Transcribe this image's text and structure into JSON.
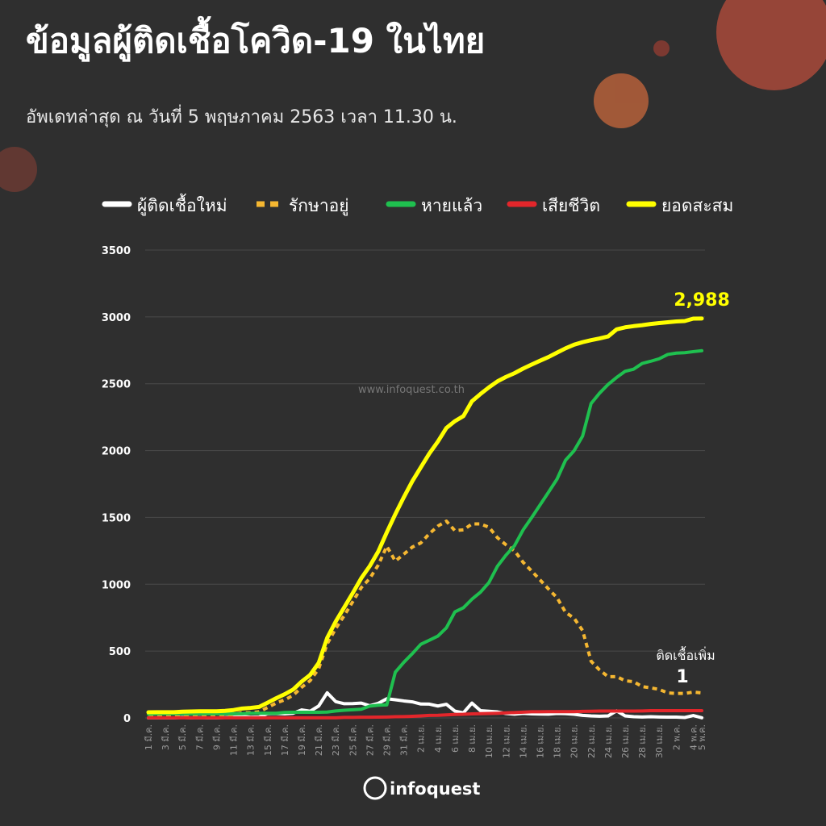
{
  "chart_data": {
    "type": "line",
    "title": "ข้อมูลผู้ติดเชื้อโควิด-19 ในไทย",
    "subtitle": "อัพเดทล่าสุด ณ วันที่  5 พฤษภาคม 2563 เวลา 11.30 น.",
    "watermark": "www.infoquest.co.th",
    "logo": "infoquest",
    "annotation": "ติดเชื้อเพิ่ม",
    "categories": [
      "1 มี.ค.",
      null,
      "3 มี.ค.",
      null,
      "5 มี.ค.",
      null,
      "7 มี.ค.",
      null,
      "9 มี.ค.",
      null,
      "11 มี.ค.",
      null,
      "13 มี.ค.",
      null,
      "15 มี.ค.",
      null,
      "17 มี.ค.",
      null,
      "19 มี.ค.",
      null,
      "21 มี.ค.",
      null,
      "23 มี.ค.",
      null,
      "25 มี.ค.",
      null,
      "27 มี.ค.",
      null,
      "29 มี.ค.",
      null,
      "31 มี.ค.",
      null,
      "2 เม.ย.",
      null,
      "4 เม.ย.",
      null,
      "6 เม.ย.",
      null,
      "8 เม.ย.",
      null,
      "10 เม.ย.",
      null,
      "12 เม.ย.",
      null,
      "14 เม.ย.",
      null,
      "16 เม.ย.",
      null,
      "18 เม.ย.",
      null,
      "20 เม.ย.",
      null,
      "22 เม.ย.",
      null,
      "24 เม.ย.",
      null,
      "26 เม.ย.",
      null,
      "28 เม.ย.",
      null,
      "30 เม.ย.",
      null,
      "2 พ.ค.",
      null,
      "4 พ.ค.",
      "5 พ.ค."
    ],
    "series": [
      {
        "name": "ผู้ติดเชื้อใหม่",
        "color": "#ffffff",
        "dashed": false,
        "values": [
          0,
          1,
          0,
          0,
          4,
          1,
          2,
          0,
          0,
          3,
          6,
          11,
          5,
          7,
          32,
          33,
          30,
          35,
          60,
          50,
          89,
          188,
          122,
          106,
          107,
          111,
          91,
          109,
          143,
          136,
          127,
          120,
          104,
          103,
          89,
          102,
          51,
          38,
          111,
          54,
          50,
          45,
          33,
          28,
          34,
          30,
          29,
          28,
          33,
          32,
          27,
          19,
          15,
          13,
          15,
          53,
          15,
          9,
          7,
          9,
          7,
          6,
          6,
          3,
          18,
          1
        ],
        "value_labels": [
          null,
          null,
          null,
          null,
          null,
          null,
          null,
          null,
          null,
          null,
          null,
          null,
          null,
          null,
          null,
          null,
          null,
          null,
          null,
          null,
          null,
          null,
          null,
          null,
          null,
          null,
          null,
          null,
          null,
          null,
          null,
          null,
          null,
          null,
          null,
          null,
          null,
          null,
          null,
          null,
          null,
          null,
          null,
          null,
          null,
          null,
          null,
          null,
          null,
          null,
          null,
          null,
          null,
          null,
          null,
          null,
          null,
          null,
          null,
          null,
          null,
          null,
          null,
          null,
          null,
          "1"
        ]
      },
      {
        "name": "รักษาอยู่",
        "color": "#f5b731",
        "dashed": true,
        "values": [
          13,
          11,
          11,
          11,
          15,
          16,
          18,
          18,
          18,
          21,
          27,
          38,
          39,
          46,
          78,
          111,
          135,
          169,
          229,
          279,
          368,
          554,
          668,
          766,
          869,
          975,
          1043,
          1144,
          1284,
          1173,
          1225,
          1278,
          1309,
          1378,
          1435,
          1472,
          1401,
          1407,
          1451,
          1451,
          1427,
          1348,
          1295,
          1251,
          1165,
          1100,
          1033,
          964,
          899,
          790,
          746,
          654,
          424,
          358,
          308,
          309,
          278,
          271,
          234,
          225,
          213,
          187,
          183,
          183,
          193,
          187
        ]
      },
      {
        "name": "หายแล้ว",
        "color": "#1fc04f",
        "dashed": false,
        "values": [
          28,
          31,
          31,
          31,
          31,
          31,
          31,
          31,
          31,
          31,
          31,
          31,
          35,
          35,
          35,
          35,
          41,
          42,
          42,
          42,
          42,
          44,
          52,
          57,
          61,
          65,
          88,
          95,
          97,
          342,
          416,
          481,
          551,
          581,
          612,
          674,
          793,
          824,
          888,
          940,
          1013,
          1135,
          1218,
          1288,
          1405,
          1497,
          1593,
          1689,
          1787,
          1928,
          1999,
          2108,
          2352,
          2430,
          2495,
          2547,
          2593,
          2609,
          2652,
          2668,
          2687,
          2719,
          2729,
          2732,
          2740,
          2747
        ]
      },
      {
        "name": "เสียชีวิต",
        "color": "#e3262b",
        "dashed": false,
        "values": [
          1,
          1,
          1,
          1,
          1,
          1,
          1,
          1,
          1,
          1,
          1,
          1,
          1,
          1,
          1,
          1,
          1,
          1,
          1,
          1,
          1,
          1,
          1,
          4,
          4,
          5,
          5,
          6,
          7,
          9,
          10,
          12,
          15,
          19,
          20,
          23,
          26,
          27,
          30,
          32,
          33,
          35,
          38,
          40,
          43,
          46,
          46,
          47,
          47,
          47,
          47,
          49,
          50,
          51,
          51,
          51,
          51,
          51,
          52,
          54,
          54,
          54,
          54,
          54,
          54,
          54
        ]
      },
      {
        "name": "ยอดสะสม",
        "color": "#ffff00",
        "dashed": false,
        "values": [
          42,
          43,
          43,
          43,
          47,
          48,
          50,
          50,
          50,
          53,
          59,
          70,
          75,
          82,
          114,
          147,
          177,
          212,
          272,
          322,
          411,
          599,
          721,
          827,
          934,
          1045,
          1136,
          1245,
          1388,
          1524,
          1651,
          1771,
          1875,
          1978,
          2067,
          2169,
          2220,
          2258,
          2369,
          2423,
          2473,
          2518,
          2551,
          2579,
          2613,
          2643,
          2672,
          2700,
          2733,
          2765,
          2792,
          2811,
          2826,
          2839,
          2854,
          2907,
          2922,
          2931,
          2938,
          2947,
          2954,
          2960,
          2966,
          2969,
          2987,
          2988
        ],
        "value_labels": [
          null,
          null,
          null,
          null,
          null,
          null,
          null,
          null,
          null,
          null,
          null,
          null,
          null,
          null,
          null,
          null,
          null,
          null,
          null,
          null,
          null,
          null,
          null,
          null,
          null,
          null,
          null,
          null,
          null,
          null,
          null,
          null,
          null,
          null,
          null,
          null,
          null,
          null,
          null,
          null,
          null,
          null,
          null,
          null,
          null,
          null,
          null,
          null,
          null,
          null,
          null,
          null,
          null,
          null,
          null,
          null,
          null,
          null,
          null,
          null,
          null,
          null,
          null,
          null,
          null,
          "2,988"
        ]
      }
    ],
    "ylim": [
      0,
      3500
    ],
    "yticks": [
      0,
      500,
      1000,
      1500,
      2000,
      2500,
      3000,
      3500
    ],
    "grid": true,
    "legend": "top"
  }
}
